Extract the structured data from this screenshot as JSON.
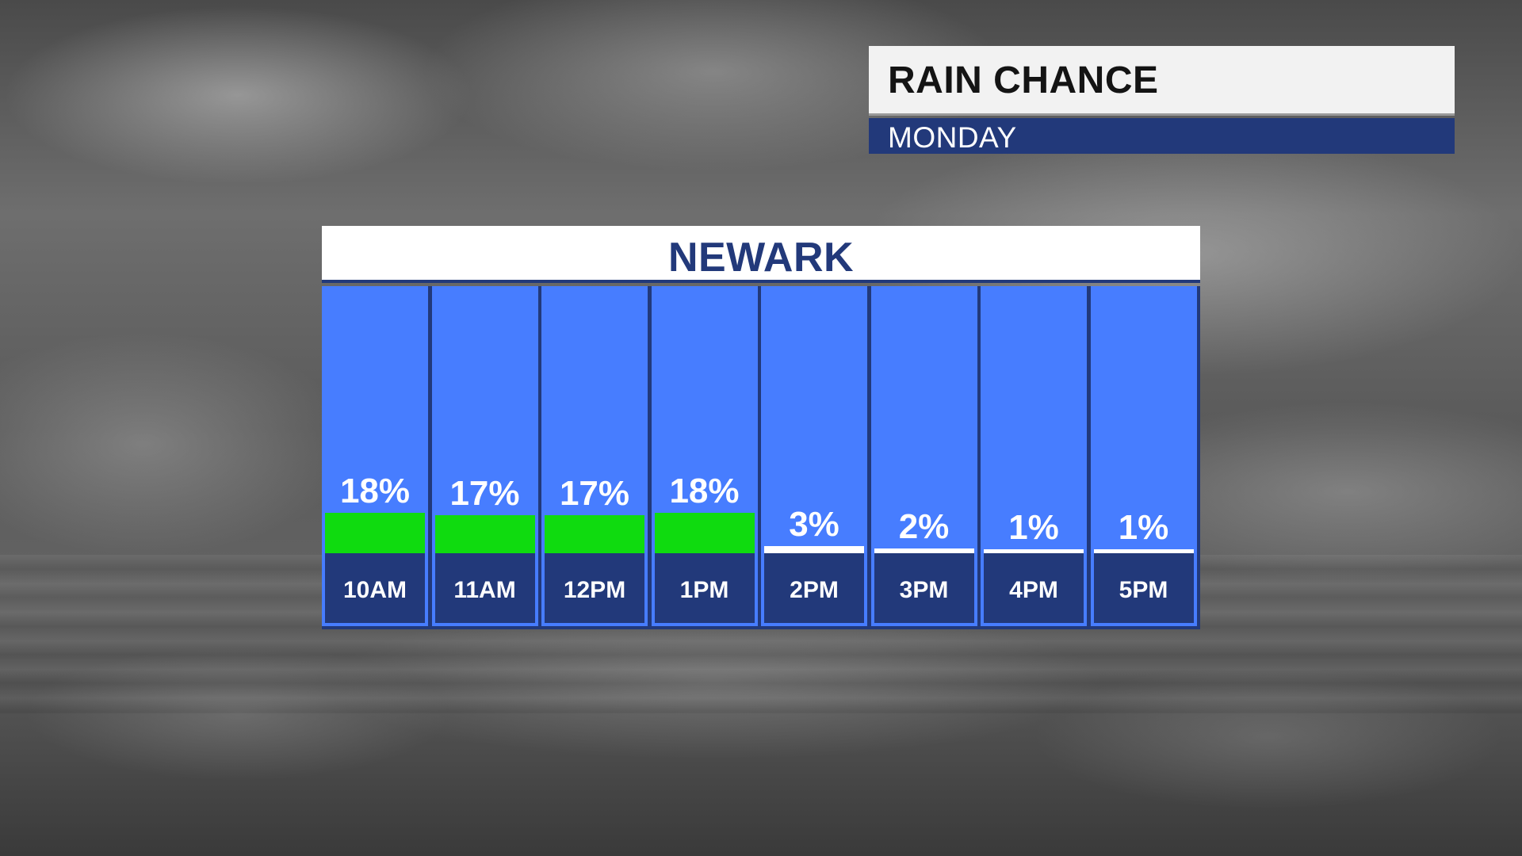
{
  "header": {
    "title": "RAIN CHANCE",
    "subtitle": "MONDAY"
  },
  "panel": {
    "location": "NEWARK"
  },
  "colors": {
    "navy": "#22397a",
    "column_blue": "#477dff",
    "bar_green": "#0fdb0f",
    "bar_white": "#ffffff"
  },
  "chart_data": {
    "type": "bar",
    "title": "RAIN CHANCE",
    "subtitle": "MONDAY",
    "location": "NEWARK",
    "categories": [
      "10AM",
      "11AM",
      "12PM",
      "1PM",
      "2PM",
      "3PM",
      "4PM",
      "5PM"
    ],
    "values": [
      18,
      17,
      17,
      18,
      3,
      2,
      1,
      1
    ],
    "value_labels": [
      "18%",
      "17%",
      "17%",
      "18%",
      "3%",
      "2%",
      "1%",
      "1%"
    ],
    "unit": "%",
    "ylim": [
      0,
      100
    ],
    "grid": false,
    "legend": "none"
  }
}
